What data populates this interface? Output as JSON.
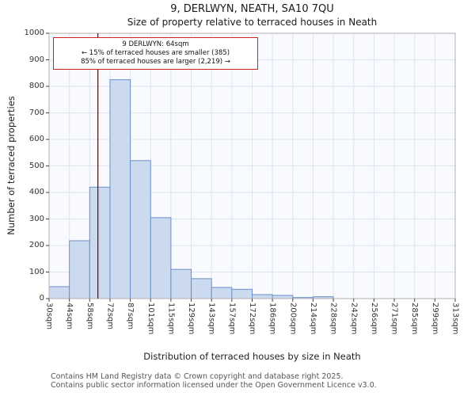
{
  "title": "9, DERLWYN, NEATH, SA10 7QU",
  "subtitle": "Size of property relative to terraced houses in Neath",
  "annotation": {
    "line1": "9 DERLWYN: 64sqm",
    "line2": "← 15% of terraced houses are smaller (385)",
    "line3": "85% of terraced houses are larger (2,219) →"
  },
  "footer": {
    "line1": "Contains HM Land Registry data © Crown copyright and database right 2025.",
    "line2": "Contains public sector information licensed under the Open Government Licence v3.0."
  },
  "chart_data": {
    "type": "bar",
    "title": "Size of property relative to terraced houses in Neath",
    "xlabel": "Distribution of terraced houses by size in Neath",
    "ylabel": "Number of terraced properties",
    "categories": [
      "30sqm",
      "44sqm",
      "58sqm",
      "72sqm",
      "87sqm",
      "101sqm",
      "115sqm",
      "129sqm",
      "143sqm",
      "157sqm",
      "172sqm",
      "186sqm",
      "200sqm",
      "214sqm",
      "228sqm",
      "242sqm",
      "256sqm",
      "271sqm",
      "285sqm",
      "299sqm",
      "313sqm"
    ],
    "values": [
      45,
      218,
      420,
      825,
      520,
      305,
      110,
      75,
      42,
      35,
      15,
      12,
      4,
      7,
      0,
      0,
      0,
      0,
      0,
      0
    ],
    "yticks": [
      0,
      100,
      200,
      300,
      400,
      500,
      600,
      700,
      800,
      900,
      1000
    ],
    "ylim": [
      0,
      1000
    ],
    "x_min": 30,
    "x_max": 313,
    "marker_value": 64,
    "grid": true,
    "legend": "none",
    "colors": {
      "bar_fill": "#ccdaf0",
      "bar_stroke": "#6b8fc9",
      "marker_line": "#990000",
      "annotation_border": "#cc2222",
      "grid": "#dce3f1",
      "plot_bg": "#f8fafd",
      "frame": "#b0b0b0",
      "tick": "#444444"
    }
  }
}
